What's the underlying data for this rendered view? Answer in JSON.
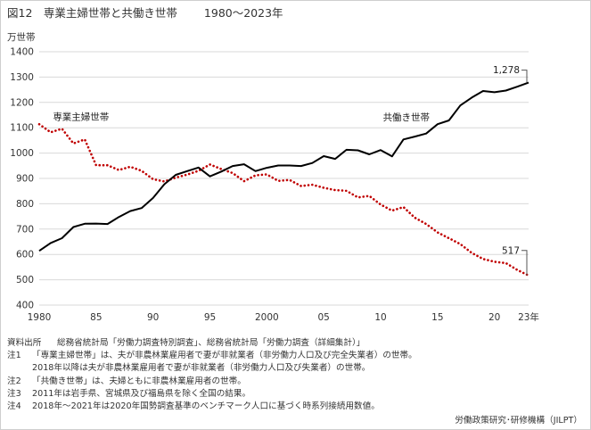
{
  "title": {
    "label": "図12　専業主婦世帯と共働き世帯",
    "period": "1980～2023年"
  },
  "chart_data": {
    "type": "line",
    "ylabel": "万世帯",
    "ylim": [
      400,
      1400
    ],
    "yticks": [
      400,
      500,
      600,
      700,
      800,
      900,
      1000,
      1100,
      1200,
      1300,
      1400
    ],
    "xlim": [
      1980,
      2023
    ],
    "xticks": [
      {
        "year": 1980,
        "label": "1980"
      },
      {
        "year": 1985,
        "label": "85"
      },
      {
        "year": 1990,
        "label": "90"
      },
      {
        "year": 1995,
        "label": "95"
      },
      {
        "year": 2000,
        "label": "2000"
      },
      {
        "year": 2005,
        "label": "05"
      },
      {
        "year": 2010,
        "label": "10"
      },
      {
        "year": 2015,
        "label": "15"
      },
      {
        "year": 2020,
        "label": "20"
      },
      {
        "year": 2023,
        "label": "23年"
      }
    ],
    "grid": true,
    "x": [
      1980,
      1981,
      1982,
      1983,
      1984,
      1985,
      1986,
      1987,
      1988,
      1989,
      1990,
      1991,
      1992,
      1993,
      1994,
      1995,
      1996,
      1997,
      1998,
      1999,
      2000,
      2001,
      2002,
      2003,
      2004,
      2005,
      2006,
      2007,
      2008,
      2009,
      2010,
      2011,
      2012,
      2013,
      2014,
      2015,
      2016,
      2017,
      2018,
      2019,
      2020,
      2021,
      2022,
      2023
    ],
    "series": [
      {
        "name": "専業主婦世帯",
        "color": "#c00000",
        "style": "dotted",
        "values": [
          1114,
          1082,
          1096,
          1038,
          1054,
          952,
          952,
          933,
          946,
          930,
          897,
          888,
          903,
          915,
          930,
          955,
          937,
          921,
          889,
          912,
          916,
          890,
          894,
          870,
          875,
          863,
          854,
          851,
          825,
          831,
          797,
          773,
          787,
          745,
          720,
          687,
          664,
          641,
          606,
          582,
          571,
          566,
          539,
          517
        ]
      },
      {
        "name": "共働き世帯",
        "color": "#000000",
        "style": "solid",
        "values": [
          614,
          645,
          664,
          708,
          721,
          722,
          720,
          748,
          771,
          783,
          823,
          877,
          914,
          929,
          943,
          908,
          927,
          949,
          956,
          929,
          942,
          951,
          951,
          949,
          961,
          988,
          977,
          1013,
          1011,
          995,
          1012,
          987,
          1054,
          1065,
          1077,
          1114,
          1129,
          1188,
          1219,
          1245,
          1240,
          1247,
          1262,
          1278
        ]
      }
    ],
    "annotations": [
      {
        "series": "共働き世帯",
        "year": 2023,
        "text": "1,278"
      },
      {
        "series": "専業主婦世帯",
        "year": 2023,
        "text": "517"
      }
    ]
  },
  "notes": [
    {
      "key": "資料出所",
      "lines": [
        "総務省統計局「労働力調査特別調査」、総務省統計局「労働力調査（詳細集計）」"
      ]
    },
    {
      "key": "注1",
      "lines": [
        "「専業主婦世帯」は、夫が非農林業雇用者で妻が非就業者（非労働力人口及び完全失業者）の世帯。",
        "2018年以降は夫が非農林業雇用者で妻が非就業者（非労働力人口及び失業者）の世帯。"
      ]
    },
    {
      "key": "注2",
      "lines": [
        "「共働き世帯」は、夫婦ともに非農林業雇用者の世帯。"
      ]
    },
    {
      "key": "注3",
      "lines": [
        "2011年は岩手県、宮城県及び福島県を除く全国の結果。"
      ]
    },
    {
      "key": "注4",
      "lines": [
        "2018年～2021年は2020年国勢調査基準のベンチマーク人口に基づく時系列接続用数値。"
      ]
    }
  ],
  "credit": "労働政策研究･研修機構（JILPT）"
}
